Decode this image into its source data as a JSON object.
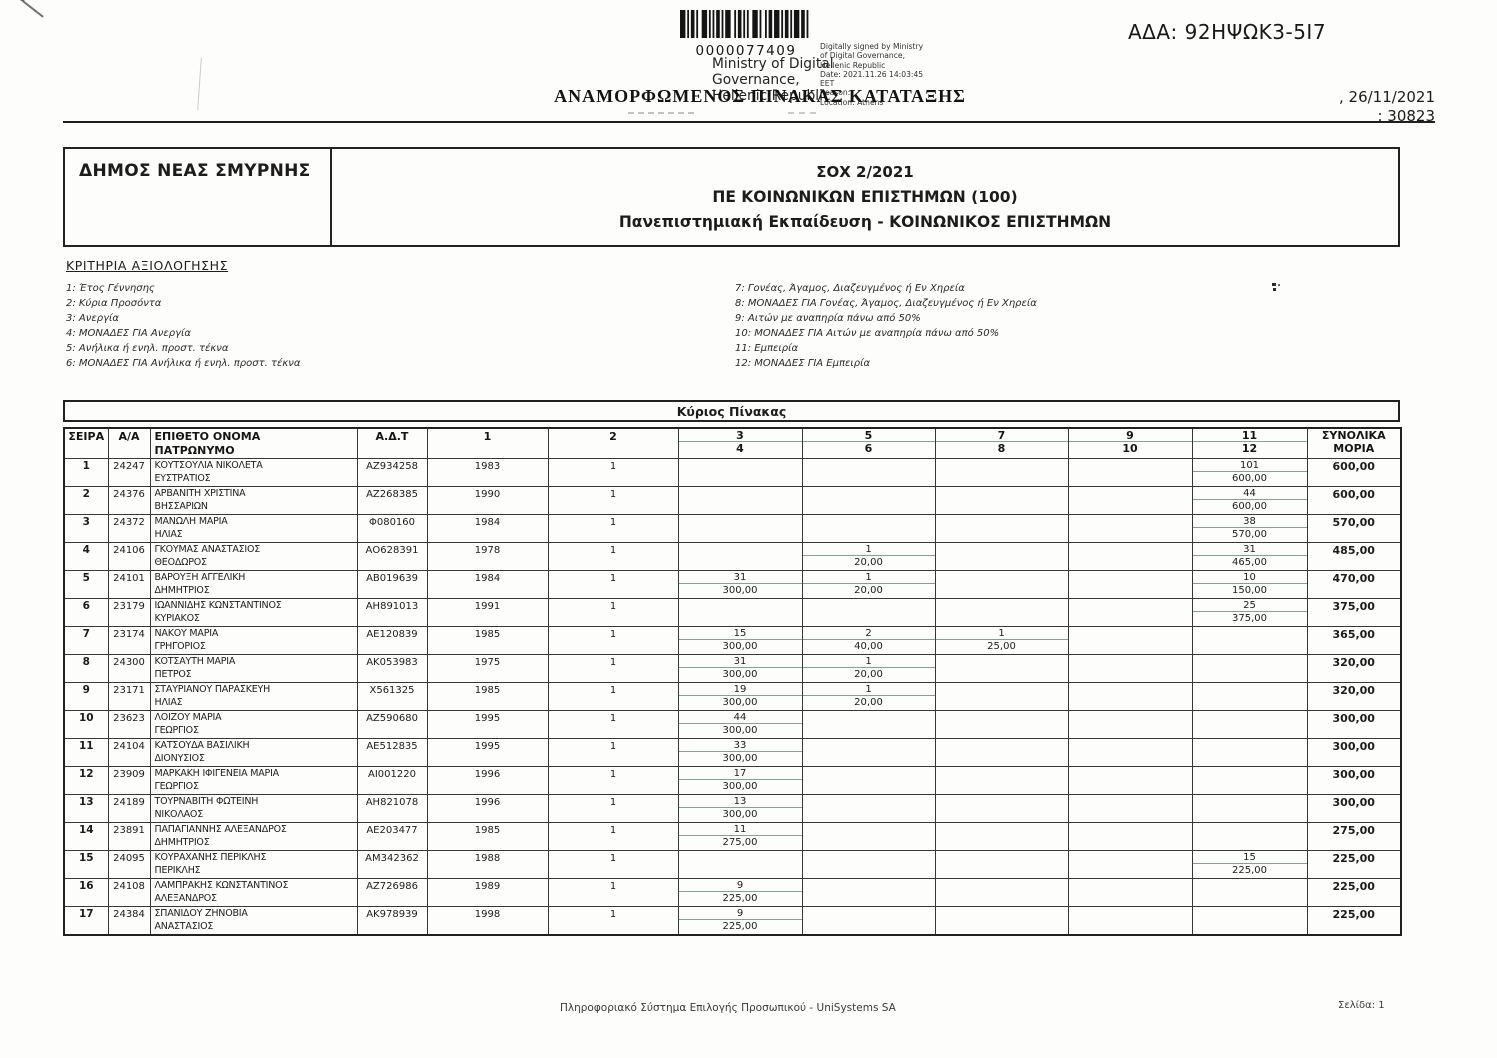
{
  "page": {
    "ada": "ΑΔΑ: 92ΗΨΩΚ3-5Ι7",
    "title": "ΑΝΑΜΟΡΦΩΜΕΝΟΣ ΠΙΝΑΚΑΣ ΚΑΤΑΤΑΞΗΣ",
    "date_line": ", 26/11/2021",
    "protocol_line": ": 30823"
  },
  "stamp": {
    "barcode_number": "0000077409",
    "authority_lines": [
      "Ministry of Digital",
      "Governance,",
      "Hellenic Republic"
    ],
    "signature_lines": [
      "Digitally signed by Ministry",
      "of Digital Governance,",
      "Hellenic Republic",
      "Date: 2021.11.26 14:03:45",
      "EET",
      "Reason:",
      "Location: Athens"
    ]
  },
  "header_box": {
    "municipality": "ΔΗΜΟΣ ΝΕΑΣ ΣΜΥΡΝΗΣ",
    "notice": "ΣΟΧ 2/2021",
    "position": "ΠΕ ΚΟΙΝΩΝΙΚΩΝ ΕΠΙΣΤΗΜΩΝ (100)",
    "education": "Πανεπιστημιακή Εκπαίδευση - ΚΟΙΝΩΝΙΚΟΣ ΕΠΙΣΤΗΜΩΝ"
  },
  "criteria": {
    "heading": "ΚΡΙΤΗΡΙΑ ΑΞΙΟΛΟΓΗΣΗΣ",
    "left": [
      "1: Έτος Γέννησης",
      "2: Κύρια Προσόντα",
      "3: Ανεργία",
      "4: ΜΟΝΑΔΕΣ ΓΙΑ Ανεργία",
      "5: Ανήλικα ή ενηλ. προστ. τέκνα",
      "6: ΜΟΝΑΔΕΣ ΓΙΑ Ανήλικα ή ενηλ. προστ. τέκνα"
    ],
    "right": [
      "7: Γονέας, Άγαμος, Διαζευγμένος ή Εν Χηρεία",
      "8: ΜΟΝΑΔΕΣ ΓΙΑ Γονέας, Άγαμος, Διαζευγμένος ή Εν Χηρεία",
      "9: Αιτών με αναπηρία πάνω από 50%",
      "10: ΜΟΝΑΔΕΣ ΓΙΑ Αιτών με αναπηρία πάνω από 50%",
      "11: Εμπειρία",
      "12: ΜΟΝΑΔΕΣ ΓΙΑ Εμπειρία"
    ]
  },
  "table": {
    "band_title": "Κύριος Πίνακας",
    "headers": {
      "seira": "ΣΕΙΡΑ",
      "aa": "Α/Α",
      "name": "ΕΠΙΘΕΤΟ ΟΝΟΜΑ",
      "patronym": "ΠΑΤΡΩΝΥΜΟ",
      "adt": "Α.Δ.Τ",
      "c1": "1",
      "c2": "2",
      "pairs": [
        [
          "3",
          "4"
        ],
        [
          "5",
          "6"
        ],
        [
          "7",
          "8"
        ],
        [
          "9",
          "10"
        ],
        [
          "11",
          "12"
        ]
      ],
      "total_top": "ΣΥΝΟΛΙΚΑ",
      "total_bottom": "ΜΟΡΙΑ"
    },
    "rows": [
      {
        "seira": "1",
        "aa": "24247",
        "name": "ΚΟΥΤΣΟΥΛΙΑ ΝΙΚΟΛΕΤΑ",
        "patronym": "ΕΥΣΤΡΑΤΙΟΣ",
        "adt": "ΑΖ934258",
        "c1": "1983",
        "c2": "1",
        "p34": [
          "",
          ""
        ],
        "p56": [
          "",
          ""
        ],
        "p78": [
          "",
          ""
        ],
        "p910": [
          "",
          ""
        ],
        "p1112": [
          "101",
          "600,00"
        ],
        "total": "600,00"
      },
      {
        "seira": "2",
        "aa": "24376",
        "name": "ΑΡΒΑΝΙΤΗ ΧΡΙΣΤΙΝΑ",
        "patronym": "ΒΗΣΣΑΡΙΩΝ",
        "adt": "ΑΖ268385",
        "c1": "1990",
        "c2": "1",
        "p34": [
          "",
          ""
        ],
        "p56": [
          "",
          ""
        ],
        "p78": [
          "",
          ""
        ],
        "p910": [
          "",
          ""
        ],
        "p1112": [
          "44",
          "600,00"
        ],
        "total": "600,00"
      },
      {
        "seira": "3",
        "aa": "24372",
        "name": "ΜΑΝΩΛΗ ΜΑΡΙΑ",
        "patronym": "ΗΛΙΑΣ",
        "adt": "Φ080160",
        "c1": "1984",
        "c2": "1",
        "p34": [
          "",
          ""
        ],
        "p56": [
          "",
          ""
        ],
        "p78": [
          "",
          ""
        ],
        "p910": [
          "",
          ""
        ],
        "p1112": [
          "38",
          "570,00"
        ],
        "total": "570,00"
      },
      {
        "seira": "4",
        "aa": "24106",
        "name": "ΓΚΟΥΜΑΣ ΑΝΑΣΤΑΣΙΟΣ",
        "patronym": "ΘΕΟΔΩΡΟΣ",
        "adt": "ΑΟ628391",
        "c1": "1978",
        "c2": "1",
        "p34": [
          "",
          ""
        ],
        "p56": [
          "1",
          "20,00"
        ],
        "p78": [
          "",
          ""
        ],
        "p910": [
          "",
          ""
        ],
        "p1112": [
          "31",
          "465,00"
        ],
        "total": "485,00"
      },
      {
        "seira": "5",
        "aa": "24101",
        "name": "ΒΑΡΟΥΞΗ ΑΓΓΕΛΙΚΗ",
        "patronym": "ΔΗΜΗΤΡΙΟΣ",
        "adt": "ΑΒ019639",
        "c1": "1984",
        "c2": "1",
        "p34": [
          "31",
          "300,00"
        ],
        "p56": [
          "1",
          "20,00"
        ],
        "p78": [
          "",
          ""
        ],
        "p910": [
          "",
          ""
        ],
        "p1112": [
          "10",
          "150,00"
        ],
        "total": "470,00"
      },
      {
        "seira": "6",
        "aa": "23179",
        "name": "ΙΩΑΝΝΙΔΗΣ ΚΩΝΣΤΑΝΤΙΝΟΣ",
        "patronym": "ΚΥΡΙΑΚΟΣ",
        "adt": "ΑΗ891013",
        "c1": "1991",
        "c2": "1",
        "p34": [
          "",
          ""
        ],
        "p56": [
          "",
          ""
        ],
        "p78": [
          "",
          ""
        ],
        "p910": [
          "",
          ""
        ],
        "p1112": [
          "25",
          "375,00"
        ],
        "total": "375,00"
      },
      {
        "seira": "7",
        "aa": "23174",
        "name": "ΝΑΚΟΥ ΜΑΡΙΑ",
        "patronym": "ΓΡΗΓΟΡΙΟΣ",
        "adt": "ΑΕ120839",
        "c1": "1985",
        "c2": "1",
        "p34": [
          "15",
          "300,00"
        ],
        "p56": [
          "2",
          "40,00"
        ],
        "p78": [
          "1",
          "25,00"
        ],
        "p910": [
          "",
          ""
        ],
        "p1112": [
          "",
          ""
        ],
        "total": "365,00"
      },
      {
        "seira": "8",
        "aa": "24300",
        "name": "ΚΟΤΣΑΥΤΗ ΜΑΡΙΑ",
        "patronym": "ΠΕΤΡΟΣ",
        "adt": "ΑΚ053983",
        "c1": "1975",
        "c2": "1",
        "p34": [
          "31",
          "300,00"
        ],
        "p56": [
          "1",
          "20,00"
        ],
        "p78": [
          "",
          ""
        ],
        "p910": [
          "",
          ""
        ],
        "p1112": [
          "",
          ""
        ],
        "total": "320,00"
      },
      {
        "seira": "9",
        "aa": "23171",
        "name": "ΣΤΑΥΡΙΑΝΟΥ ΠΑΡΑΣΚΕΥΗ",
        "patronym": "ΗΛΙΑΣ",
        "adt": "Χ561325",
        "c1": "1985",
        "c2": "1",
        "p34": [
          "19",
          "300,00"
        ],
        "p56": [
          "1",
          "20,00"
        ],
        "p78": [
          "",
          ""
        ],
        "p910": [
          "",
          ""
        ],
        "p1112": [
          "",
          ""
        ],
        "total": "320,00"
      },
      {
        "seira": "10",
        "aa": "23623",
        "name": "ΛΟΙΖΟΥ ΜΑΡΙΑ",
        "patronym": "ΓΕΩΡΓΙΟΣ",
        "adt": "ΑΖ590680",
        "c1": "1995",
        "c2": "1",
        "p34": [
          "44",
          "300,00"
        ],
        "p56": [
          "",
          ""
        ],
        "p78": [
          "",
          ""
        ],
        "p910": [
          "",
          ""
        ],
        "p1112": [
          "",
          ""
        ],
        "total": "300,00"
      },
      {
        "seira": "11",
        "aa": "24104",
        "name": "ΚΑΤΣΟΥΔΑ ΒΑΣΙΛΙΚΗ",
        "patronym": "ΔΙΟΝΥΣΙΟΣ",
        "adt": "ΑΕ512835",
        "c1": "1995",
        "c2": "1",
        "p34": [
          "33",
          "300,00"
        ],
        "p56": [
          "",
          ""
        ],
        "p78": [
          "",
          ""
        ],
        "p910": [
          "",
          ""
        ],
        "p1112": [
          "",
          ""
        ],
        "total": "300,00"
      },
      {
        "seira": "12",
        "aa": "23909",
        "name": "ΜΑΡΚΑΚΗ ΙΦΙΓΕΝΕΙΑ ΜΑΡΙΑ",
        "patronym": "ΓΕΩΡΓΙΟΣ",
        "adt": "ΑΙ001220",
        "c1": "1996",
        "c2": "1",
        "p34": [
          "17",
          "300,00"
        ],
        "p56": [
          "",
          ""
        ],
        "p78": [
          "",
          ""
        ],
        "p910": [
          "",
          ""
        ],
        "p1112": [
          "",
          ""
        ],
        "total": "300,00"
      },
      {
        "seira": "13",
        "aa": "24189",
        "name": "ΤΟΥΡΝΑΒΙΤΗ ΦΩΤΕΙΝΗ",
        "patronym": "ΝΙΚΟΛΑΟΣ",
        "adt": "ΑΗ821078",
        "c1": "1996",
        "c2": "1",
        "p34": [
          "13",
          "300,00"
        ],
        "p56": [
          "",
          ""
        ],
        "p78": [
          "",
          ""
        ],
        "p910": [
          "",
          ""
        ],
        "p1112": [
          "",
          ""
        ],
        "total": "300,00"
      },
      {
        "seira": "14",
        "aa": "23891",
        "name": "ΠΑΠΑΓΙΑΝΝΗΣ ΑΛΕΞΑΝΔΡΟΣ",
        "patronym": "ΔΗΜΗΤΡΙΟΣ",
        "adt": "ΑΕ203477",
        "c1": "1985",
        "c2": "1",
        "p34": [
          "11",
          "275,00"
        ],
        "p56": [
          "",
          ""
        ],
        "p78": [
          "",
          ""
        ],
        "p910": [
          "",
          ""
        ],
        "p1112": [
          "",
          ""
        ],
        "total": "275,00"
      },
      {
        "seira": "15",
        "aa": "24095",
        "name": "ΚΟΥΡΑΧΑΝΗΣ ΠΕΡΙΚΛΗΣ",
        "patronym": "ΠΕΡΙΚΛΗΣ",
        "adt": "ΑΜ342362",
        "c1": "1988",
        "c2": "1",
        "p34": [
          "",
          ""
        ],
        "p56": [
          "",
          ""
        ],
        "p78": [
          "",
          ""
        ],
        "p910": [
          "",
          ""
        ],
        "p1112": [
          "15",
          "225,00"
        ],
        "total": "225,00"
      },
      {
        "seira": "16",
        "aa": "24108",
        "name": "ΛΑΜΠΡΑΚΗΣ ΚΩΝΣΤΑΝΤΙΝΟΣ",
        "patronym": "ΑΛΕΞΑΝΔΡΟΣ",
        "adt": "ΑΖ726986",
        "c1": "1989",
        "c2": "1",
        "p34": [
          "9",
          "225,00"
        ],
        "p56": [
          "",
          ""
        ],
        "p78": [
          "",
          ""
        ],
        "p910": [
          "",
          ""
        ],
        "p1112": [
          "",
          ""
        ],
        "total": "225,00"
      },
      {
        "seira": "17",
        "aa": "24384",
        "name": "ΣΠΑΝΙΔΟΥ ΖΗΝΟΒΙΑ",
        "patronym": "ΑΝΑΣΤΑΣΙΟΣ",
        "adt": "ΑΚ978939",
        "c1": "1998",
        "c2": "1",
        "p34": [
          "9",
          "225,00"
        ],
        "p56": [
          "",
          ""
        ],
        "p78": [
          "",
          ""
        ],
        "p910": [
          "",
          ""
        ],
        "p1112": [
          "",
          ""
        ],
        "total": "225,00"
      }
    ]
  },
  "footer": {
    "system": "Πληροφοριακό Σύστημα Επιλογής Προσωπικού - UniSystems SA",
    "page": "Σελίδα: 1"
  },
  "colors": {
    "ink": "#1d1c1b",
    "border": "#3a3633",
    "pair_separator": "#7fa396"
  }
}
